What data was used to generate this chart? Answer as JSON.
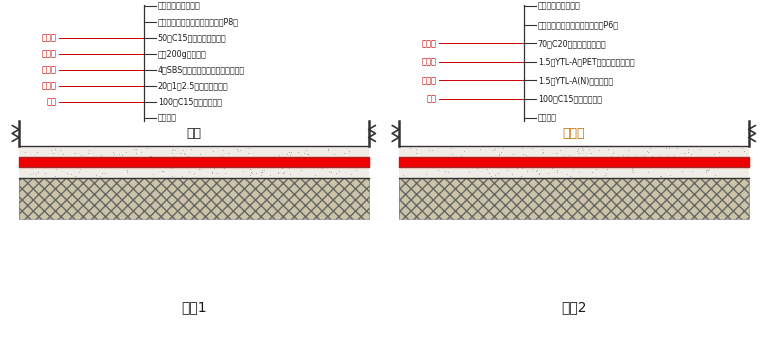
{
  "bg_color": "#ffffff",
  "text_color": "#1a1a1a",
  "red_color": "#cc0000",
  "red_stripe": "#ee0000",
  "line_color": "#2a2a2a",
  "panels": [
    {
      "title": "做法1",
      "center_label": "筏板",
      "red_labels": [
        {
          "text": "保护层",
          "ann_row": 2
        },
        {
          "text": "隔离层",
          "ann_row": 3
        },
        {
          "text": "防水层",
          "ann_row": 4
        },
        {
          "text": "找平层",
          "ann_row": 5
        },
        {
          "text": "垫层",
          "ann_row": 6
        }
      ],
      "annotations": [
        {
          "row": 0,
          "label": "地面（见工程做法）"
        },
        {
          "row": 1,
          "label": "抗渗钢筋混凝土底板（抗渗等级P8）"
        },
        {
          "row": 2,
          "label": "50厚C15细石混凝土保护层"
        },
        {
          "row": 3,
          "label": "花铺200g油毡一道"
        },
        {
          "row": 4,
          "label": "4厚SBS改性沥青防水卷材（聚酯胎）"
        },
        {
          "row": 5,
          "label": "20厚1：2.5水泥砂浆找平层"
        },
        {
          "row": 6,
          "label": "100厚C15素混凝土垫层"
        },
        {
          "row": 7,
          "label": "素土夯实"
        }
      ]
    },
    {
      "title": "做法2",
      "center_label": "止水板",
      "red_labels": [
        {
          "text": "保护层",
          "ann_row": 2
        },
        {
          "text": "防水层",
          "ann_row": 3
        },
        {
          "text": "防水层",
          "ann_row": 4
        },
        {
          "text": "垫层",
          "ann_row": 5
        }
      ],
      "annotations": [
        {
          "row": 0,
          "label": "地面（见工程做法）"
        },
        {
          "row": 1,
          "label": "抗渗钢筋混凝土底板（抗渗等级P6）"
        },
        {
          "row": 2,
          "label": "70厚C20细石混凝土保护层"
        },
        {
          "row": 3,
          "label": "1.5厚YTL-A（PET）自粘卷材防水层"
        },
        {
          "row": 4,
          "label": "1.5厚YTL-A(N)卷材防水层"
        },
        {
          "row": 5,
          "label": "100厚C15素混凝土垫层"
        },
        {
          "row": 6,
          "label": "素土夯实"
        }
      ]
    }
  ]
}
